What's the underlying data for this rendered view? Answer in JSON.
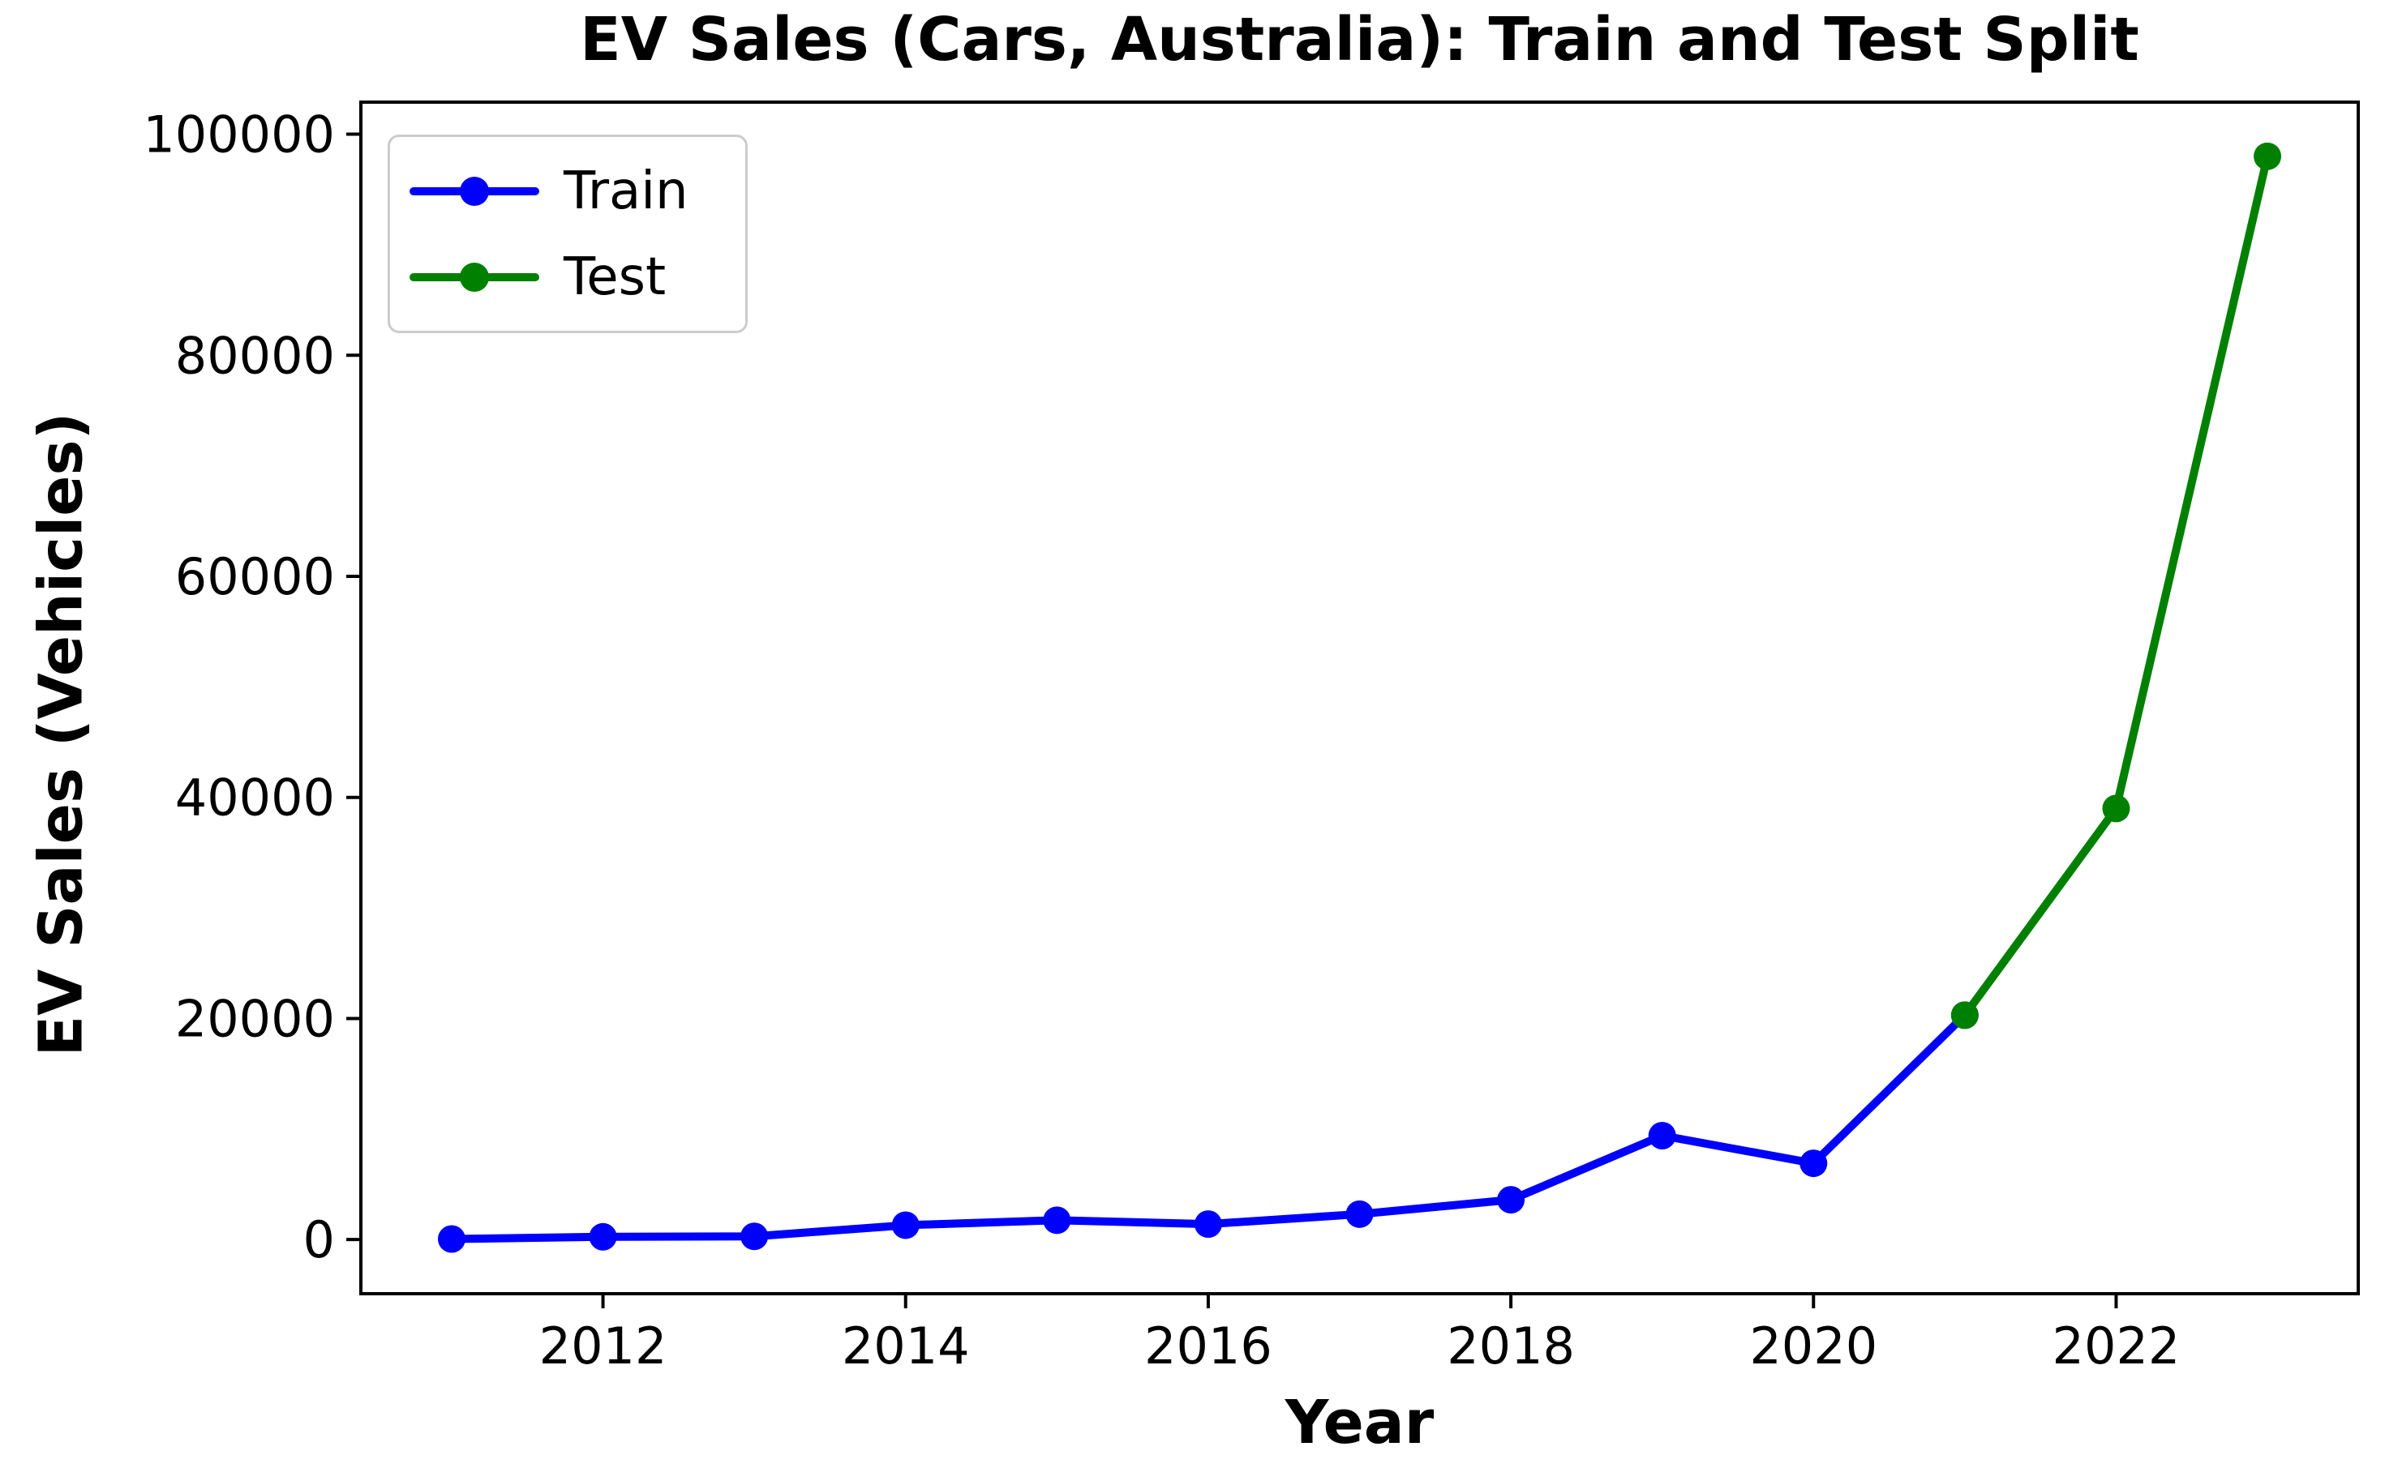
{
  "figure": {
    "background": "#ffffff",
    "spine_color": "#000000"
  },
  "chart_data": {
    "type": "line",
    "title": "EV Sales (Cars, Australia): Train and Test Split",
    "xlabel": "Year",
    "ylabel": "EV Sales (Vehicles)",
    "x_ticks": [
      2012,
      2014,
      2016,
      2018,
      2020,
      2022
    ],
    "y_ticks": [
      0,
      20000,
      40000,
      60000,
      80000,
      100000
    ],
    "xlim": [
      2010.4,
      2023.6
    ],
    "ylim": [
      -4900,
      102900
    ],
    "grid": false,
    "legend_position": "upper left",
    "marker": "circle",
    "series": [
      {
        "name": "Train",
        "color": "#0000ff",
        "x": [
          2011,
          2012,
          2013,
          2014,
          2015,
          2016,
          2017,
          2018,
          2019,
          2020,
          2021
        ],
        "values": [
          49,
          250,
          290,
          1300,
          1750,
          1400,
          2300,
          3600,
          9400,
          6900,
          20300
        ]
      },
      {
        "name": "Test",
        "color": "#008000",
        "x": [
          2021,
          2022,
          2023
        ],
        "values": [
          20300,
          39000,
          98000
        ]
      }
    ]
  },
  "legend": {
    "items": [
      {
        "label": "Train",
        "color": "#0000ff"
      },
      {
        "label": "Test",
        "color": "#008000"
      }
    ]
  }
}
